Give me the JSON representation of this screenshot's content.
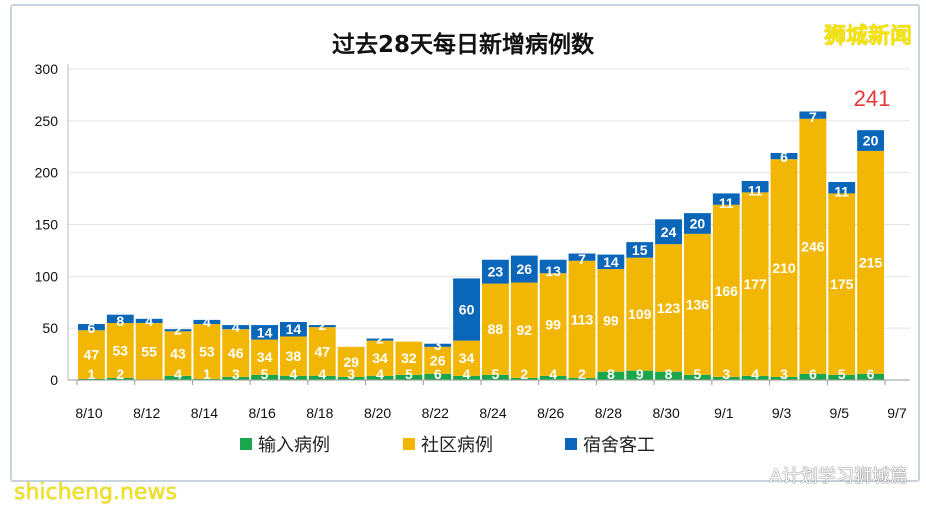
{
  "chart_data": {
    "type": "bar",
    "stacked": true,
    "title": "过去28天每日新增病例数",
    "categories": [
      "8/10",
      "8/11",
      "8/12",
      "8/13",
      "8/14",
      "8/15",
      "8/16",
      "8/17",
      "8/18",
      "8/19",
      "8/20",
      "8/21",
      "8/22",
      "8/23",
      "8/24",
      "8/25",
      "8/26",
      "8/27",
      "8/28",
      "8/29",
      "8/30",
      "8/31",
      "9/1",
      "9/2",
      "9/3",
      "9/4",
      "9/5",
      "9/6"
    ],
    "x_tick_labels": [
      "8/10",
      "8/12",
      "8/14",
      "8/16",
      "8/18",
      "8/20",
      "8/22",
      "8/24",
      "8/26",
      "8/28",
      "8/30",
      "9/1",
      "9/3",
      "9/5",
      "9/7"
    ],
    "ylim": [
      0,
      300
    ],
    "y_ticks": [
      0,
      50,
      100,
      150,
      200,
      250,
      300
    ],
    "grid": true,
    "legend_position": "bottom",
    "series": [
      {
        "name": "输入病例",
        "color": "#1aa64a",
        "values": [
          1,
          2,
          0,
          4,
          1,
          3,
          5,
          4,
          4,
          3,
          4,
          5,
          6,
          4,
          5,
          2,
          4,
          2,
          8,
          9,
          8,
          5,
          3,
          4,
          3,
          6,
          5,
          6
        ]
      },
      {
        "name": "社区病例",
        "color": "#f2b705",
        "values": [
          47,
          53,
          55,
          43,
          53,
          46,
          34,
          38,
          47,
          29,
          34,
          32,
          26,
          34,
          88,
          92,
          99,
          113,
          99,
          109,
          123,
          136,
          166,
          177,
          210,
          246,
          175,
          215
        ]
      },
      {
        "name": "宿舍客工",
        "color": "#0a66b8",
        "values": [
          6,
          8,
          4,
          2,
          4,
          4,
          14,
          14,
          2,
          0,
          2,
          0,
          3,
          60,
          23,
          26,
          13,
          7,
          14,
          15,
          24,
          20,
          11,
          11,
          6,
          7,
          11,
          20
        ]
      }
    ],
    "annotation": {
      "text": "241",
      "color": "#e8343a"
    }
  },
  "watermarks": {
    "top_right": "狮城新闻",
    "bottom_left": "shicheng.news",
    "bottom_right": "A计划学习狮城篇"
  }
}
